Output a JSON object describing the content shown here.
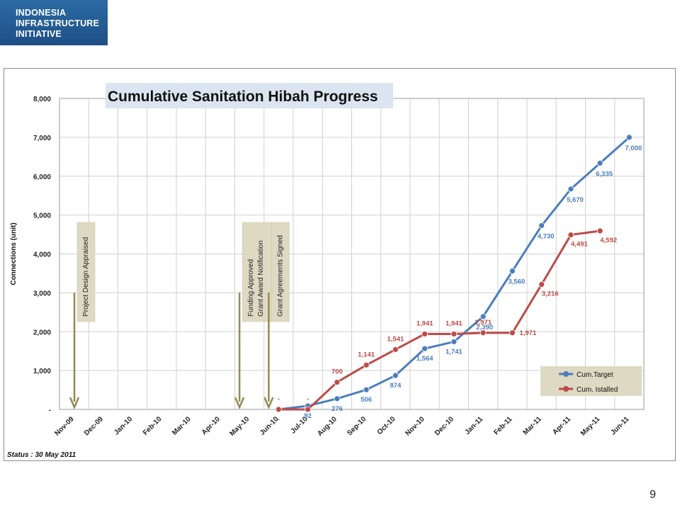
{
  "logo": {
    "lines": "INDONESIA\nINFRASTRUCTURE\nINITIATIVE"
  },
  "page_number": "9",
  "colors": {
    "target": "#4a7ebb",
    "installed": "#be4b48",
    "milestone": "#948a54",
    "milestone_box": "#ddd9c3",
    "logo_bg": "#1f5a92"
  },
  "chart_data": {
    "type": "line",
    "title": "Cumulative Sanitation Hibah Progress",
    "xlabel": "",
    "ylabel": "Connections (unit)",
    "ylim": [
      0,
      8000
    ],
    "yticks": [
      "-",
      "1,000",
      "2,000",
      "3,000",
      "4,000",
      "5,000",
      "6,000",
      "7,000",
      "8,000"
    ],
    "grid": true,
    "legend_position": "bottom-right",
    "status_text": "Status : 30 May 2011",
    "categories": [
      "Nov-09",
      "Dec-09",
      "Jan-10",
      "Feb-10",
      "Mar-10",
      "Apr-10",
      "May-10",
      "Jun-10",
      "Jul-10",
      "Aug-10",
      "Sep-10",
      "Oct-10",
      "Nov-10",
      "Dec-10",
      "Jan-11",
      "Feb-11",
      "Mar-11",
      "Apr-11",
      "May-11",
      "Jun-11"
    ],
    "series": [
      {
        "name": "Cum.Target",
        "color": "#4a7ebb",
        "values": [
          null,
          null,
          null,
          null,
          null,
          null,
          null,
          0,
          92,
          276,
          506,
          874,
          1564,
          1741,
          2390,
          3560,
          4730,
          5670,
          6335,
          7000
        ],
        "labels": [
          "",
          "",
          "",
          "",
          "",
          "",
          "",
          "-",
          "92",
          "276",
          "506",
          "874",
          "1,564",
          "1,741",
          "2,390",
          "3,560",
          "4,730",
          "5,670",
          "6,335",
          "7,000"
        ]
      },
      {
        "name": "Cum. Istalled",
        "color": "#be4b48",
        "values": [
          null,
          null,
          null,
          null,
          null,
          null,
          null,
          0,
          0,
          700,
          1141,
          1541,
          1941,
          1941,
          1971,
          1971,
          3216,
          4491,
          4592,
          null
        ],
        "labels": [
          "",
          "",
          "",
          "",
          "",
          "",
          "",
          "-",
          "-",
          "700",
          "1,141",
          "1,541",
          "1,941",
          "1,941",
          "1,971",
          "1,971",
          "3,216",
          "4,491",
          "4,592",
          ""
        ]
      }
    ],
    "annotations": [
      {
        "lines": [
          "Project Design Appraised"
        ],
        "category": "Nov-09"
      },
      {
        "lines": [
          "Funding Approved",
          "Grant Award Notification"
        ],
        "category": "May-10"
      },
      {
        "lines": [
          "Grant Agreements Signed"
        ],
        "category": "Jun-10"
      }
    ]
  }
}
